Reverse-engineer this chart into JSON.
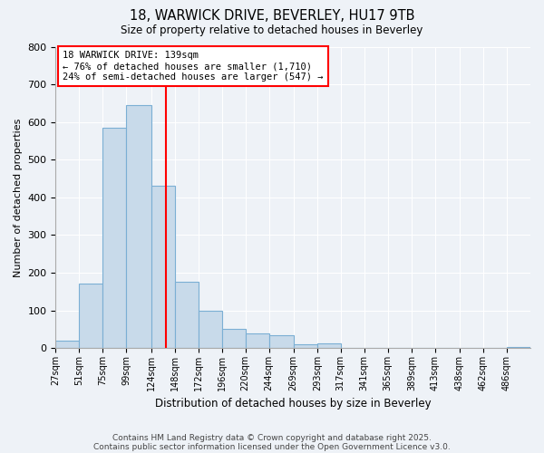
{
  "title": "18, WARWICK DRIVE, BEVERLEY, HU17 9TB",
  "subtitle": "Size of property relative to detached houses in Beverley",
  "xlabel": "Distribution of detached houses by size in Beverley",
  "ylabel": "Number of detached properties",
  "bin_edges": [
    27,
    51,
    75,
    99,
    124,
    148,
    172,
    196,
    220,
    244,
    269,
    293,
    317,
    341,
    365,
    389,
    413,
    438,
    462,
    486,
    510
  ],
  "bin_counts": [
    20,
    170,
    585,
    645,
    430,
    175,
    100,
    50,
    40,
    33,
    10,
    13,
    1,
    1,
    1,
    1,
    1,
    1,
    1,
    2
  ],
  "bar_facecolor": "#c8daea",
  "bar_edgecolor": "#7bafd4",
  "vline_x": 139,
  "vline_color": "red",
  "ylim": [
    0,
    800
  ],
  "yticks": [
    0,
    100,
    200,
    300,
    400,
    500,
    600,
    700,
    800
  ],
  "annotation_title": "18 WARWICK DRIVE: 139sqm",
  "annotation_line1": "← 76% of detached houses are smaller (1,710)",
  "annotation_line2": "24% of semi-detached houses are larger (547) →",
  "footnote1": "Contains HM Land Registry data © Crown copyright and database right 2025.",
  "footnote2": "Contains public sector information licensed under the Open Government Licence v3.0.",
  "background_color": "#eef2f7",
  "grid_color": "#ffffff"
}
